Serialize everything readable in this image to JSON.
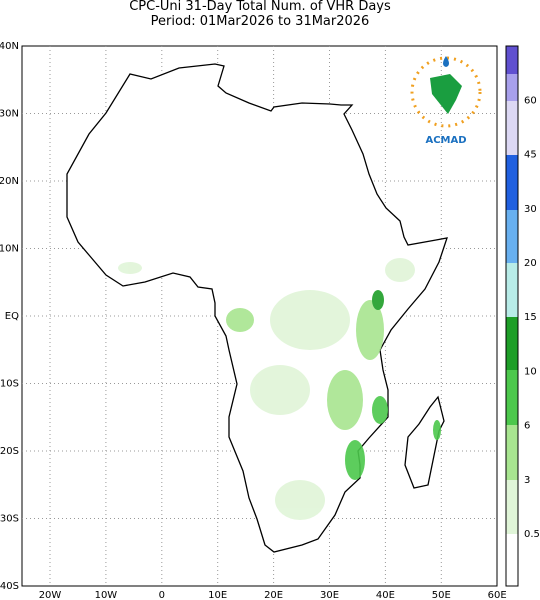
{
  "header": {
    "title": "CPC-Uni 31-Day Total Num. of VHR Days",
    "period": "Period: 01Mar2026 to 31Mar2026"
  },
  "map": {
    "lat_labels": [
      "40N",
      "30N",
      "20N",
      "10N",
      "EQ",
      "10S",
      "20S",
      "30S",
      "40S"
    ],
    "lon_labels": [
      "20W",
      "10W",
      "0",
      "10E",
      "20E",
      "30E",
      "40E",
      "50E",
      "60E"
    ]
  },
  "colorbar": {
    "labels": [
      "0.5",
      "3",
      "6",
      "10",
      "15",
      "20",
      "30",
      "45",
      "60"
    ]
  },
  "logo": {
    "text": "ACMAD"
  }
}
